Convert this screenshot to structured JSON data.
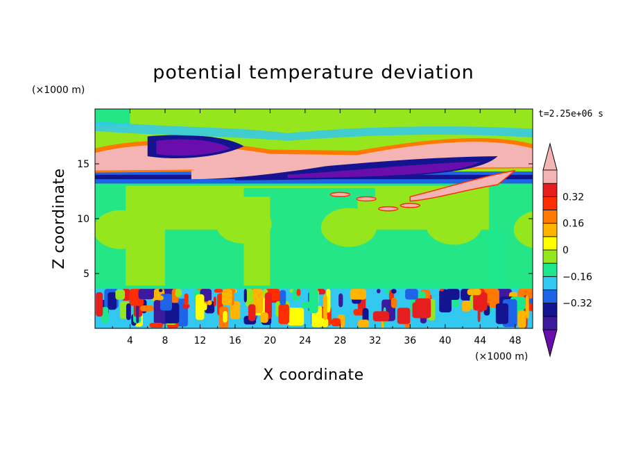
{
  "chart_data": {
    "type": "heatmap",
    "title": "potential temperature deviation",
    "xlabel": "X coordinate",
    "ylabel": "Z coordinate",
    "x_unit": "(×1000 m)",
    "y_unit": "(×1000 m)",
    "time_label": "t=2.25e+06 s",
    "xlim": [
      0,
      50
    ],
    "ylim": [
      0,
      20
    ],
    "x_ticks": [
      4,
      8,
      12,
      16,
      20,
      24,
      28,
      32,
      36,
      40,
      44,
      48
    ],
    "y_ticks": [
      5,
      10,
      15
    ],
    "colorbar": {
      "levels": [
        -0.48,
        -0.4,
        -0.32,
        -0.24,
        -0.16,
        -0.08,
        0,
        0.08,
        0.16,
        0.24,
        0.32,
        0.4,
        0.48
      ],
      "tick_labels": [
        {
          "value": 0.32,
          "label": "0.32"
        },
        {
          "value": 0.16,
          "label": "0.16"
        },
        {
          "value": 0,
          "label": "0"
        },
        {
          "value": -0.16,
          "label": "−0.16"
        },
        {
          "value": -0.32,
          "label": "−0.32"
        }
      ],
      "colors": [
        "#6a0dad",
        "#3c1a9e",
        "#141490",
        "#1e64e6",
        "#32c8f0",
        "#1ee68c",
        "#96e61e",
        "#ffff00",
        "#ffb400",
        "#ff7800",
        "#ff2d00",
        "#e61e1e",
        "#f5b4b4"
      ],
      "extend": "both"
    },
    "background_level": "#96e61e"
  }
}
